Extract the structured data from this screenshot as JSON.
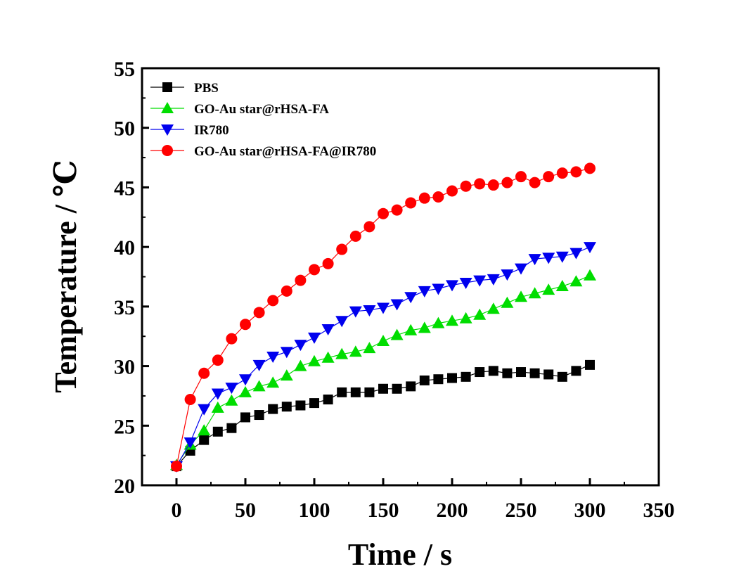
{
  "chart_data": {
    "type": "scatter",
    "title": "",
    "xlabel": "Time / s",
    "ylabel": "Temperature / ℃",
    "xlim": [
      -25,
      350
    ],
    "ylim": [
      20,
      55
    ],
    "xticks": [
      "0",
      "50",
      "100",
      "150",
      "200",
      "250",
      "300",
      "350"
    ],
    "yticks": [
      "20",
      "25",
      "30",
      "35",
      "40",
      "45",
      "50",
      "55"
    ],
    "grid": false,
    "legend_position": "top-left",
    "x": [
      0,
      10,
      20,
      30,
      40,
      50,
      60,
      70,
      80,
      90,
      100,
      110,
      120,
      130,
      140,
      150,
      160,
      170,
      180,
      190,
      200,
      210,
      220,
      230,
      240,
      250,
      260,
      270,
      280,
      290,
      300
    ],
    "series": [
      {
        "name": "PBS",
        "color": "#000000",
        "marker": "square",
        "values": [
          21.6,
          22.9,
          23.8,
          24.5,
          24.8,
          25.7,
          25.9,
          26.4,
          26.6,
          26.7,
          26.9,
          27.2,
          27.8,
          27.8,
          27.8,
          28.1,
          28.1,
          28.3,
          28.8,
          28.9,
          29.0,
          29.1,
          29.5,
          29.6,
          29.4,
          29.5,
          29.4,
          29.3,
          29.1,
          29.6,
          30.1
        ]
      },
      {
        "name": "GO-Au star@rHSA-FA",
        "color": "#00dd00",
        "marker": "triangle-up",
        "values": [
          21.7,
          23.4,
          24.6,
          26.5,
          27.1,
          27.8,
          28.3,
          28.6,
          29.2,
          30.0,
          30.4,
          30.7,
          31.0,
          31.2,
          31.5,
          32.1,
          32.6,
          33.0,
          33.2,
          33.6,
          33.8,
          34.0,
          34.3,
          34.8,
          35.3,
          35.8,
          36.1,
          36.4,
          36.7,
          37.1,
          37.6
        ]
      },
      {
        "name": "IR780",
        "color": "#0000ee",
        "marker": "triangle-down",
        "values": [
          21.6,
          23.6,
          26.4,
          27.7,
          28.2,
          28.9,
          30.1,
          30.8,
          31.2,
          31.8,
          32.4,
          33.1,
          33.8,
          34.6,
          34.7,
          34.9,
          35.2,
          35.8,
          36.3,
          36.5,
          36.8,
          37.0,
          37.2,
          37.3,
          37.7,
          38.2,
          39.0,
          39.1,
          39.2,
          39.5,
          40.0
        ]
      },
      {
        "name": "GO-Au star@rHSA-FA@IR780",
        "color": "#ff0000",
        "marker": "circle",
        "values": [
          21.6,
          27.2,
          29.4,
          30.5,
          32.3,
          33.5,
          34.5,
          35.5,
          36.3,
          37.2,
          38.1,
          38.6,
          39.8,
          40.9,
          41.7,
          42.8,
          43.1,
          43.7,
          44.1,
          44.2,
          44.7,
          45.1,
          45.3,
          45.2,
          45.4,
          45.9,
          45.4,
          45.9,
          46.2,
          46.3,
          46.6
        ]
      }
    ]
  }
}
